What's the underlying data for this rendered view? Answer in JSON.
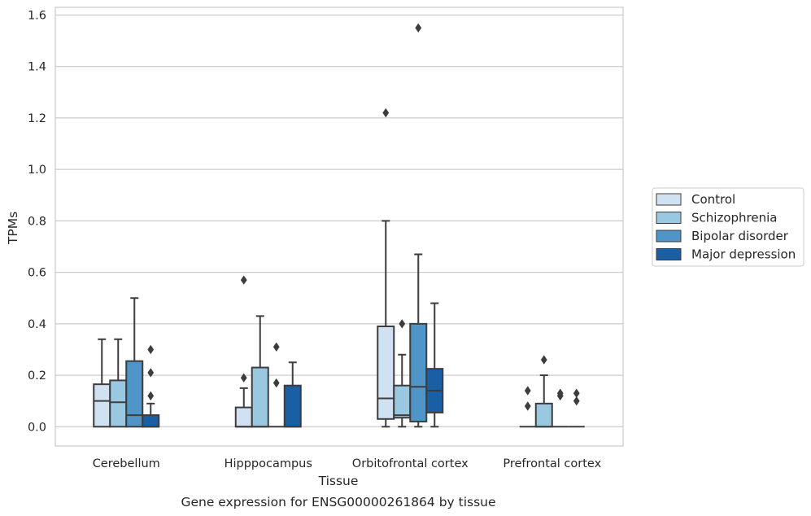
{
  "chart_data": {
    "type": "boxplot",
    "title": "Gene expression for ENSG00000261864 by tissue",
    "xlabel": "Tissue",
    "ylabel": "TPMs",
    "ylim": [
      -0.075,
      1.63
    ],
    "yticks": [
      0.0,
      0.2,
      0.4,
      0.6,
      0.8,
      1.0,
      1.2,
      1.4,
      1.6
    ],
    "ytick_labels": [
      "0.0",
      "0.2",
      "0.4",
      "0.6",
      "0.8",
      "1.0",
      "1.2",
      "1.4",
      "1.6"
    ],
    "grid": "horizontal",
    "legend_position": "outside-right",
    "categories": [
      "Cerebellum",
      "Hipppocampus",
      "Orbitofrontal cortex",
      "Prefrontal cortex"
    ],
    "series": [
      {
        "name": "Control",
        "color": "#d0e1f2",
        "boxes": [
          {
            "min": 0.0,
            "q1": 0.0,
            "median": 0.1,
            "q3": 0.165,
            "max": 0.34,
            "outliers": []
          },
          {
            "min": 0.0,
            "q1": 0.0,
            "median": 0.0,
            "q3": 0.075,
            "max": 0.15,
            "outliers": [
              0.19,
              0.57
            ]
          },
          {
            "min": 0.0,
            "q1": 0.03,
            "median": 0.11,
            "q3": 0.39,
            "max": 0.8,
            "outliers": [
              1.22
            ]
          },
          {
            "min": 0.0,
            "q1": 0.0,
            "median": 0.0,
            "q3": 0.0,
            "max": 0.0,
            "outliers": [
              0.08,
              0.14
            ]
          }
        ]
      },
      {
        "name": "Schizophrenia",
        "color": "#9ac8e0",
        "boxes": [
          {
            "min": 0.0,
            "q1": 0.0,
            "median": 0.095,
            "q3": 0.18,
            "max": 0.34,
            "outliers": []
          },
          {
            "min": 0.0,
            "q1": 0.0,
            "median": 0.0,
            "q3": 0.23,
            "max": 0.43,
            "outliers": []
          },
          {
            "min": 0.0,
            "q1": 0.035,
            "median": 0.045,
            "q3": 0.16,
            "max": 0.28,
            "outliers": [
              0.4
            ]
          },
          {
            "min": 0.0,
            "q1": 0.0,
            "median": 0.0,
            "q3": 0.09,
            "max": 0.2,
            "outliers": [
              0.26
            ]
          }
        ]
      },
      {
        "name": "Bipolar disorder",
        "color": "#5095c7",
        "boxes": [
          {
            "min": 0.0,
            "q1": 0.0,
            "median": 0.045,
            "q3": 0.255,
            "max": 0.5,
            "outliers": []
          },
          {
            "min": 0.0,
            "q1": 0.0,
            "median": 0.0,
            "q3": 0.0,
            "max": 0.0,
            "outliers": [
              0.17,
              0.31
            ]
          },
          {
            "min": 0.0,
            "q1": 0.02,
            "median": 0.155,
            "q3": 0.4,
            "max": 0.67,
            "outliers": [
              1.55
            ]
          },
          {
            "min": 0.0,
            "q1": 0.0,
            "median": 0.0,
            "q3": 0.0,
            "max": 0.0,
            "outliers": [
              0.12,
              0.13
            ]
          }
        ]
      },
      {
        "name": "Major depression",
        "color": "#1a5ea3",
        "boxes": [
          {
            "min": 0.0,
            "q1": 0.0,
            "median": 0.0,
            "q3": 0.045,
            "max": 0.09,
            "outliers": [
              0.12,
              0.21,
              0.3
            ]
          },
          {
            "min": 0.0,
            "q1": 0.0,
            "median": 0.0,
            "q3": 0.16,
            "max": 0.25,
            "outliers": []
          },
          {
            "min": 0.0,
            "q1": 0.055,
            "median": 0.14,
            "q3": 0.225,
            "max": 0.48,
            "outliers": []
          },
          {
            "min": 0.0,
            "q1": 0.0,
            "median": 0.0,
            "q3": 0.0,
            "max": 0.0,
            "outliers": [
              0.1,
              0.13
            ]
          }
        ]
      }
    ]
  }
}
